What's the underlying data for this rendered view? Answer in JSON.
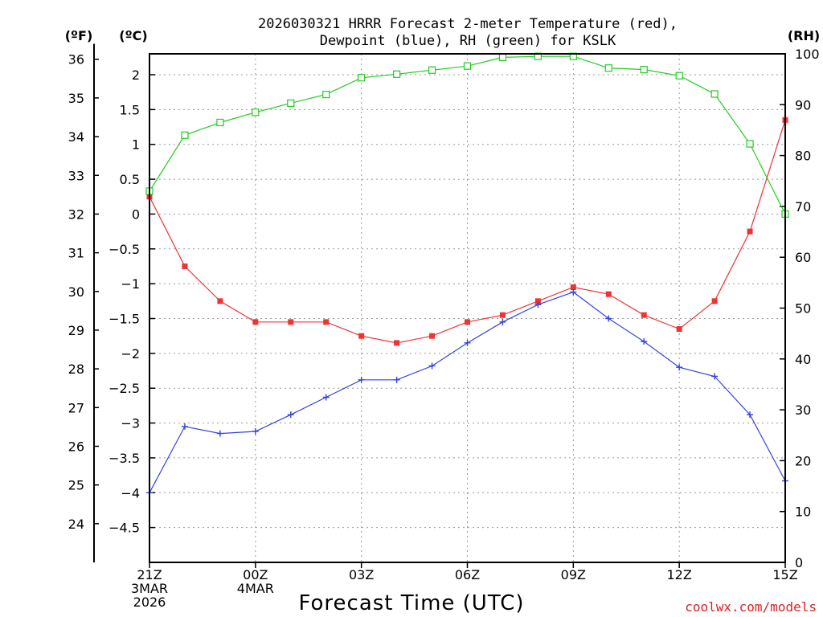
{
  "chart_data": {
    "type": "line",
    "title_line1": "2026030321 HRRR Forecast 2-meter Temperature (red),",
    "title_line2": "Dewpoint (blue), RH (green) for KSLK",
    "xlabel": "Forecast Time (UTC)",
    "credit": "coolwx.com/models",
    "units": {
      "fahrenheit": "(ºF)",
      "celsius": "(ºC)",
      "rh": "(RH)"
    },
    "colors": {
      "temperature": "#ee3333",
      "dewpoint": "#3344dd",
      "rh": "#22cc22",
      "credit": "#dd2222"
    },
    "x_hours": [
      0,
      1,
      2,
      3,
      4,
      5,
      6,
      7,
      8,
      9,
      10,
      11,
      12,
      13,
      14,
      15,
      16,
      17,
      18
    ],
    "x_ticks": [
      {
        "hour": 0,
        "lines": [
          "21Z",
          "3MAR",
          "2026"
        ]
      },
      {
        "hour": 3,
        "lines": [
          "00Z",
          "4MAR"
        ]
      },
      {
        "hour": 6,
        "lines": [
          "03Z"
        ]
      },
      {
        "hour": 9,
        "lines": [
          "06Z"
        ]
      },
      {
        "hour": 12,
        "lines": [
          "09Z"
        ]
      },
      {
        "hour": 15,
        "lines": [
          "12Z"
        ]
      },
      {
        "hour": 18,
        "lines": [
          "15Z"
        ]
      }
    ],
    "celsius_axis": {
      "min": -5.0,
      "max": 2.3,
      "ticks": [
        2,
        1.5,
        1,
        0.5,
        0,
        -0.5,
        -1,
        -1.5,
        -2,
        -2.5,
        -3,
        -3.5,
        -4,
        -4.5
      ],
      "tick_labels": [
        "2",
        "1.5",
        "1",
        "0.5",
        "0",
        "−0.5",
        "−1",
        "−1.5",
        "−2",
        "−2.5",
        "−3",
        "−3.5",
        "−4",
        "−4.5"
      ]
    },
    "fahrenheit_axis": {
      "ticks": [
        36,
        35,
        34,
        33,
        32,
        31,
        30,
        29,
        28,
        27,
        26,
        25,
        24
      ],
      "tick_labels": [
        "36",
        "35",
        "34",
        "33",
        "32",
        "31",
        "30",
        "29",
        "28",
        "27",
        "26",
        "25",
        "24"
      ]
    },
    "rh_axis": {
      "min": 0,
      "max": 100,
      "ticks": [
        0,
        10,
        20,
        30,
        40,
        50,
        60,
        70,
        80,
        90,
        100
      ],
      "tick_labels": [
        "0",
        "10",
        "20",
        "30",
        "40",
        "50",
        "60",
        "70",
        "80",
        "90",
        "100"
      ]
    },
    "series": [
      {
        "name": "Temperature",
        "unit": "C",
        "marker": "filled-square",
        "values": [
          0.25,
          -0.75,
          -1.25,
          -1.55,
          -1.55,
          -1.55,
          -1.75,
          -1.85,
          -1.75,
          -1.55,
          -1.45,
          -1.25,
          -1.05,
          -1.15,
          -1.45,
          -1.65,
          -1.25,
          -0.25,
          1.35
        ]
      },
      {
        "name": "Dewpoint",
        "unit": "C",
        "marker": "plus",
        "values": [
          -4.0,
          -3.05,
          -3.15,
          -3.12,
          -2.88,
          -2.63,
          -2.38,
          -2.38,
          -2.18,
          -1.85,
          -1.55,
          -1.3,
          -1.12,
          -1.5,
          -1.83,
          -2.2,
          -2.33,
          -2.88,
          -3.83
        ]
      },
      {
        "name": "RH",
        "unit": "%",
        "marker": "open-square",
        "values": [
          73,
          84,
          86.5,
          88.5,
          90.3,
          92,
          95.3,
          96,
          96.8,
          97.6,
          99.3,
          99.5,
          99.5,
          97.2,
          96.9,
          95.7,
          92.1,
          82.3,
          68.5
        ]
      }
    ]
  }
}
